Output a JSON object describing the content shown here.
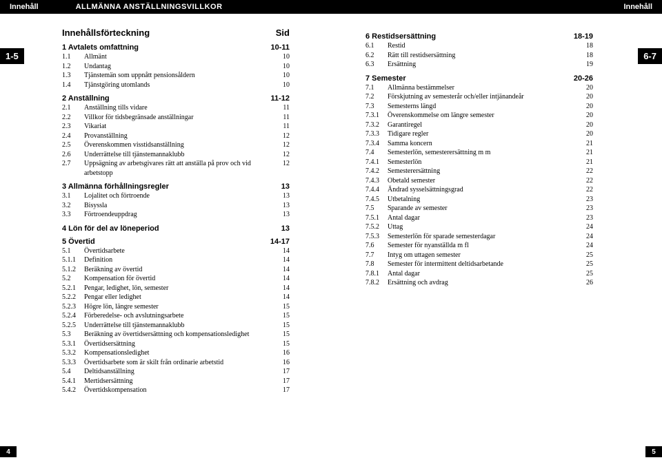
{
  "header": {
    "left": "Innehåll",
    "title": "ALLMÄNNA ANSTÄLLNINGSVILLKOR",
    "right": "Innehåll"
  },
  "tabLeft": "1-5",
  "tabRight": "6-7",
  "pageNumLeft": "4",
  "pageNumRight": "5",
  "tocTitle": "Innehållsförteckning",
  "tocSid": "Sid",
  "leftSections": [
    {
      "title": "1 Avtalets omfattning",
      "page": "10-11",
      "items": [
        {
          "n": "1.1",
          "t": "Allmänt",
          "p": "10"
        },
        {
          "n": "1.2",
          "t": "Undantag",
          "p": "10"
        },
        {
          "n": "1.3",
          "t": "Tjänstemän som uppnått pensionsåldern",
          "p": "10"
        },
        {
          "n": "1.4",
          "t": "Tjänstgöring utomlands",
          "p": "10"
        }
      ]
    },
    {
      "title": "2 Anställning",
      "page": "11-12",
      "items": [
        {
          "n": "2.1",
          "t": "Anställning tills vidare",
          "p": "11"
        },
        {
          "n": "2.2",
          "t": "Villkor för tidsbegränsade anställningar",
          "p": "11"
        },
        {
          "n": "2.3",
          "t": "Vikariat",
          "p": "11"
        },
        {
          "n": "2.4",
          "t": "Provanställning",
          "p": "12"
        },
        {
          "n": "2.5",
          "t": "Överenskommen visstidsanställning",
          "p": "12"
        },
        {
          "n": "2.6",
          "t": "Underrättelse till tjänstemannaklubb",
          "p": "12"
        },
        {
          "n": "2.7",
          "t": "Uppsägning av arbetsgivares rätt att anställa på prov och vid arbetstopp",
          "p": "12"
        }
      ]
    },
    {
      "title": "3 Allmänna förhållningsregler",
      "page": "13",
      "items": [
        {
          "n": "3.1",
          "t": "Lojalitet och förtroende",
          "p": "13"
        },
        {
          "n": "3.2",
          "t": "Bisyssla",
          "p": "13"
        },
        {
          "n": "3.3",
          "t": "Förtroendeuppdrag",
          "p": "13"
        }
      ]
    },
    {
      "title": "4 Lön för del av löneperiod",
      "page": "13",
      "items": []
    },
    {
      "title": "5 Övertid",
      "page": "14-17",
      "items": [
        {
          "n": "5.1",
          "t": "Övertidsarbete",
          "p": "14"
        },
        {
          "n": "5.1.1",
          "t": "Definition",
          "p": "14"
        },
        {
          "n": "5.1.2",
          "t": "Beräkning av övertid",
          "p": "14"
        },
        {
          "n": "5.2",
          "t": "Kompensation för övertid",
          "p": "14"
        },
        {
          "n": "5.2.1",
          "t": "Pengar, ledighet, lön, semester",
          "p": "14"
        },
        {
          "n": "5.2.2",
          "t": "Pengar eller ledighet",
          "p": "14"
        },
        {
          "n": "5.2.3",
          "t": "Högre lön, längre semester",
          "p": "15"
        },
        {
          "n": "5.2.4",
          "t": "Förberedelse- och avslutningsarbete",
          "p": "15"
        },
        {
          "n": "5.2.5",
          "t": "Underrättelse till tjänstemannaklubb",
          "p": "15"
        },
        {
          "n": "5.3",
          "t": "Beräkning av övertidsersättning och kompensationsledighet",
          "p": "15"
        },
        {
          "n": "5.3.1",
          "t": "Övertidsersättning",
          "p": "15"
        },
        {
          "n": "5.3.2",
          "t": "Kompensationsledighet",
          "p": "16"
        },
        {
          "n": "5.3.3",
          "t": "Övertidsarbete som är skilt från ordinarie arbetstid",
          "p": "16"
        },
        {
          "n": "5.4",
          "t": "Deltidsanställning",
          "p": "17"
        },
        {
          "n": "5.4.1",
          "t": "Mertidsersättning",
          "p": "17"
        },
        {
          "n": "5.4.2",
          "t": "Övertidskompensation",
          "p": "17"
        }
      ]
    }
  ],
  "rightSections": [
    {
      "title": "6 Restidsersättning",
      "page": "18-19",
      "items": [
        {
          "n": "6.1",
          "t": "Restid",
          "p": "18"
        },
        {
          "n": "6.2",
          "t": "Rätt till restidsersättning",
          "p": "18"
        },
        {
          "n": "6.3",
          "t": "Ersättning",
          "p": "19"
        }
      ]
    },
    {
      "title": "7 Semester",
      "page": "20-26",
      "items": [
        {
          "n": "7.1",
          "t": "Allmänna bestämmelser",
          "p": "20"
        },
        {
          "n": "7.2",
          "t": "Förskjutning av semesterår och/eller intjänandeår",
          "p": "20"
        },
        {
          "n": "7.3",
          "t": "Semesterns längd",
          "p": "20"
        },
        {
          "n": "7.3.1",
          "t": "Överenskommelse om längre semester",
          "p": "20"
        },
        {
          "n": "7.3.2",
          "t": "Garantiregel",
          "p": "20"
        },
        {
          "n": "7.3.3",
          "t": "Tidigare regler",
          "p": "20"
        },
        {
          "n": "7.3.4",
          "t": "Samma koncern",
          "p": "21"
        },
        {
          "n": "7.4",
          "t": "Semesterlön, semesterersättning m m",
          "p": "21"
        },
        {
          "n": "7.4.1",
          "t": "Semesterlön",
          "p": "21"
        },
        {
          "n": "7.4.2",
          "t": "Semesterersättning",
          "p": "22"
        },
        {
          "n": "7.4.3",
          "t": "Obetald semester",
          "p": "22"
        },
        {
          "n": "7.4.4",
          "t": "Ändrad sysselsättningsgrad",
          "p": "22"
        },
        {
          "n": "7.4.5",
          "t": "Utbetalning",
          "p": "23"
        },
        {
          "n": "7.5",
          "t": "Sparande av semester",
          "p": "23"
        },
        {
          "n": "7.5.1",
          "t": "Antal dagar",
          "p": "23"
        },
        {
          "n": "7.5.2",
          "t": "Uttag",
          "p": "24"
        },
        {
          "n": "7.5.3",
          "t": "Semesterlön för sparade semesterdagar",
          "p": "24"
        },
        {
          "n": "7.6",
          "t": "Semester för nyanställda m fl",
          "p": "24"
        },
        {
          "n": "7.7",
          "t": "Intyg om uttagen semester",
          "p": "25"
        },
        {
          "n": "7.8",
          "t": "Semester för intermittent deltidsarbetande",
          "p": "25"
        },
        {
          "n": "7.8.1",
          "t": "Antal dagar",
          "p": "25"
        },
        {
          "n": "7.8.2",
          "t": "Ersättning och avdrag",
          "p": "26"
        }
      ]
    }
  ]
}
